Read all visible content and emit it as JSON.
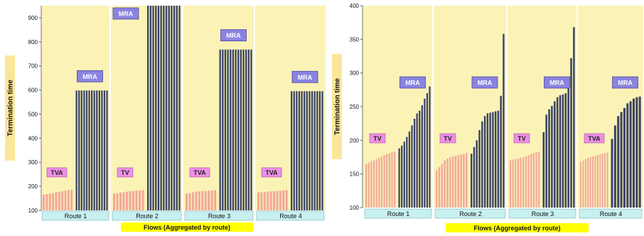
{
  "colors": {
    "plot_bg": "#fbf3b6",
    "bar_light": "#f2a99b",
    "bar_dark": "#3b4566",
    "bar_dark_stroke": "#1f2540",
    "route_box": "#c8f0f0",
    "flows_box": "#ffff00",
    "ylabel_box": "#fbe79a",
    "label_mra": "#8a84e0",
    "label_pink": "#ee90e6"
  },
  "chart_data": [
    {
      "type": "bar",
      "ylabel": "Termination time",
      "xlabel": "Flows (Aggregated by route)",
      "ylim": [
        100,
        950
      ],
      "yticks": [
        100,
        200,
        300,
        400,
        500,
        600,
        700,
        800,
        900
      ],
      "groups": [
        {
          "route": "Route 1",
          "light_label": "TVA",
          "dark_label": "MRA",
          "light_values": [
            165,
            168,
            170,
            172,
            175,
            177,
            180,
            182,
            184,
            186
          ],
          "dark_values": [
            598,
            598,
            598,
            598,
            598,
            598,
            598,
            598,
            598,
            598,
            598,
            598,
            598
          ]
        },
        {
          "route": "Route 2",
          "light_label": "TV",
          "dark_label": "MRA",
          "light_values": [
            170,
            172,
            174,
            176,
            178,
            180,
            181,
            182,
            183,
            184
          ],
          "dark_values": [
            950,
            950,
            950,
            950,
            950,
            950,
            950,
            950,
            950,
            950,
            950,
            950,
            950
          ]
        },
        {
          "route": "Route 3",
          "light_label": "TVA",
          "dark_label": "MRA",
          "light_values": [
            170,
            172,
            175,
            177,
            179,
            180,
            181,
            182,
            183,
            184
          ],
          "dark_values": [
            768,
            768,
            768,
            768,
            768,
            768,
            768,
            768,
            768,
            768,
            768,
            768,
            768
          ]
        },
        {
          "route": "Route 4",
          "light_label": "TVA",
          "dark_label": "MRA",
          "light_values": [
            175,
            176,
            177,
            178,
            179,
            180,
            181,
            182,
            183,
            184
          ],
          "dark_values": [
            595,
            595,
            595,
            595,
            595,
            595,
            595,
            595,
            595,
            595,
            595,
            595,
            595
          ]
        }
      ]
    },
    {
      "type": "bar",
      "ylabel": "Termination time",
      "xlabel": "Flows (Aggregated by route)",
      "ylim": [
        100,
        400
      ],
      "yticks": [
        100,
        150,
        200,
        250,
        300,
        350,
        400
      ],
      "groups": [
        {
          "route": "Route 1",
          "light_label": "TV",
          "dark_label": "MRA",
          "light_values": [
            165,
            167,
            169,
            170,
            172,
            174,
            176,
            178,
            180,
            181,
            182,
            183
          ],
          "dark_values": [
            188,
            192,
            198,
            205,
            213,
            222,
            232,
            240,
            244,
            252,
            262,
            270,
            280
          ]
        },
        {
          "route": "Route 2",
          "light_label": "TV",
          "dark_label": "MRA",
          "light_values": [
            155,
            160,
            165,
            170,
            173,
            175,
            176,
            177,
            178,
            179,
            180,
            181
          ],
          "dark_values": [
            180,
            190,
            200,
            215,
            228,
            236,
            240,
            241,
            242,
            243,
            244,
            266,
            358
          ]
        },
        {
          "route": "Route 3",
          "light_label": "TV",
          "dark_label": "MRA",
          "light_values": [
            170,
            171,
            172,
            173,
            174,
            175,
            176,
            178,
            180,
            181,
            182,
            183
          ],
          "dark_values": [
            212,
            238,
            246,
            251,
            258,
            264,
            267,
            268,
            270,
            282,
            322,
            368
          ]
        },
        {
          "route": "Route 4",
          "light_label": "TVA",
          "dark_label": "MRA",
          "light_values": [
            168,
            170,
            172,
            174,
            175,
            176,
            177,
            178,
            179,
            180,
            181,
            182
          ],
          "dark_values": [
            202,
            222,
            236,
            242,
            248,
            255,
            258,
            262,
            264,
            265
          ]
        }
      ]
    }
  ]
}
